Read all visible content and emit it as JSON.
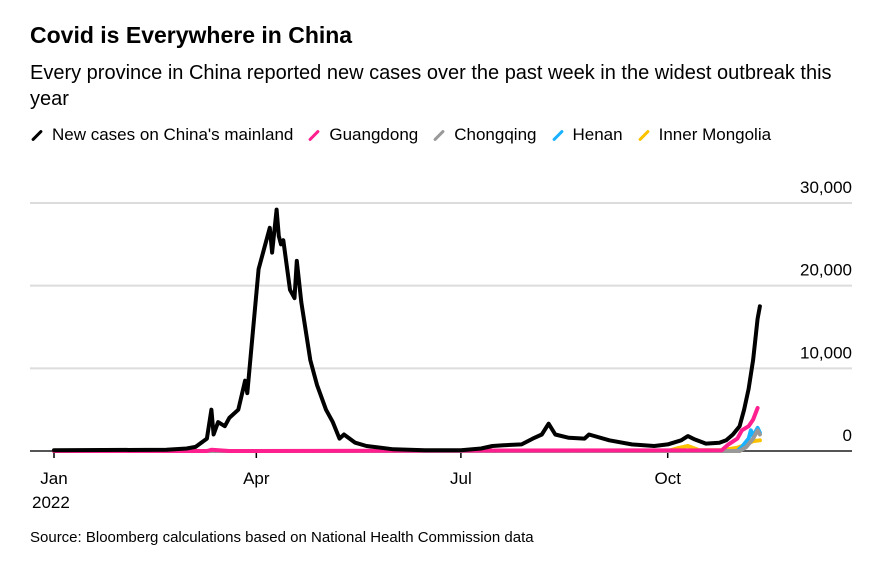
{
  "chart_data": {
    "type": "line",
    "title": "Covid is Everywhere in China",
    "subtitle": "Every province in China reported new cases over the past week in the widest outbreak this year",
    "source": "Source: Bloomberg calculations based on National Health Commission data",
    "ylim": [
      0,
      30000
    ],
    "yticks": [
      {
        "v": 0,
        "label": "0"
      },
      {
        "v": 10000,
        "label": "10,000"
      },
      {
        "v": 20000,
        "label": "20,000"
      },
      {
        "v": 30000,
        "label": "30,000"
      }
    ],
    "xticks": [
      {
        "d": "2022-01-01",
        "label": "Jan",
        "sub": "2022"
      },
      {
        "d": "2022-04-01",
        "label": "Apr"
      },
      {
        "d": "2022-07-01",
        "label": "Jul"
      },
      {
        "d": "2022-10-01",
        "label": "Oct"
      }
    ],
    "grid": true,
    "legend_position": "top-left",
    "series": [
      {
        "name": "New cases on China's mainland",
        "color": "#000000",
        "points": [
          [
            "2022-01-01",
            100
          ],
          [
            "2022-02-20",
            150
          ],
          [
            "2022-03-01",
            300
          ],
          [
            "2022-03-05",
            500
          ],
          [
            "2022-03-10",
            1500
          ],
          [
            "2022-03-12",
            5000
          ],
          [
            "2022-03-13",
            2000
          ],
          [
            "2022-03-15",
            3500
          ],
          [
            "2022-03-18",
            3000
          ],
          [
            "2022-03-20",
            4000
          ],
          [
            "2022-03-24",
            5000
          ],
          [
            "2022-03-27",
            8500
          ],
          [
            "2022-03-28",
            7000
          ],
          [
            "2022-03-30",
            13000
          ],
          [
            "2022-04-02",
            22000
          ],
          [
            "2022-04-05",
            25000
          ],
          [
            "2022-04-07",
            27000
          ],
          [
            "2022-04-08",
            24000
          ],
          [
            "2022-04-10",
            29200
          ],
          [
            "2022-04-11",
            26000
          ],
          [
            "2022-04-12",
            25000
          ],
          [
            "2022-04-13",
            25500
          ],
          [
            "2022-04-16",
            19500
          ],
          [
            "2022-04-18",
            18500
          ],
          [
            "2022-04-19",
            23000
          ],
          [
            "2022-04-21",
            18000
          ],
          [
            "2022-04-25",
            11000
          ],
          [
            "2022-04-28",
            8000
          ],
          [
            "2022-05-02",
            5000
          ],
          [
            "2022-05-05",
            3500
          ],
          [
            "2022-05-08",
            1500
          ],
          [
            "2022-05-10",
            2000
          ],
          [
            "2022-05-15",
            1000
          ],
          [
            "2022-05-20",
            600
          ],
          [
            "2022-06-01",
            200
          ],
          [
            "2022-06-15",
            100
          ],
          [
            "2022-07-01",
            100
          ],
          [
            "2022-07-10",
            300
          ],
          [
            "2022-07-15",
            600
          ],
          [
            "2022-07-20",
            700
          ],
          [
            "2022-07-28",
            800
          ],
          [
            "2022-08-02",
            1500
          ],
          [
            "2022-08-06",
            2000
          ],
          [
            "2022-08-09",
            3300
          ],
          [
            "2022-08-12",
            2000
          ],
          [
            "2022-08-18",
            1600
          ],
          [
            "2022-08-25",
            1500
          ],
          [
            "2022-08-27",
            2000
          ],
          [
            "2022-09-05",
            1300
          ],
          [
            "2022-09-15",
            800
          ],
          [
            "2022-09-25",
            600
          ],
          [
            "2022-10-01",
            800
          ],
          [
            "2022-10-07",
            1300
          ],
          [
            "2022-10-10",
            1800
          ],
          [
            "2022-10-13",
            1400
          ],
          [
            "2022-10-18",
            900
          ],
          [
            "2022-10-24",
            1000
          ],
          [
            "2022-10-27",
            1300
          ],
          [
            "2022-10-30",
            2000
          ],
          [
            "2022-11-02",
            3000
          ],
          [
            "2022-11-04",
            5000
          ],
          [
            "2022-11-06",
            7500
          ],
          [
            "2022-11-08",
            11000
          ],
          [
            "2022-11-10",
            16000
          ],
          [
            "2022-11-11",
            17500
          ]
        ]
      },
      {
        "name": "Guangdong",
        "color": "#ff1f8e",
        "points": [
          [
            "2022-01-01",
            0
          ],
          [
            "2022-03-10",
            0
          ],
          [
            "2022-03-12",
            150
          ],
          [
            "2022-03-20",
            0
          ],
          [
            "2022-10-25",
            100
          ],
          [
            "2022-10-28",
            800
          ],
          [
            "2022-11-01",
            1500
          ],
          [
            "2022-11-03",
            2500
          ],
          [
            "2022-11-06",
            3000
          ],
          [
            "2022-11-08",
            3800
          ],
          [
            "2022-11-10",
            5200
          ]
        ]
      },
      {
        "name": "Chongqing",
        "color": "#999999",
        "points": [
          [
            "2022-01-01",
            0
          ],
          [
            "2022-11-02",
            0
          ],
          [
            "2022-11-05",
            500
          ],
          [
            "2022-11-08",
            1500
          ],
          [
            "2022-11-10",
            2500
          ],
          [
            "2022-11-11",
            2000
          ]
        ]
      },
      {
        "name": "Henan",
        "color": "#1ab2ff",
        "points": [
          [
            "2022-01-01",
            0
          ],
          [
            "2022-11-01",
            0
          ],
          [
            "2022-11-03",
            500
          ],
          [
            "2022-11-06",
            1500
          ],
          [
            "2022-11-07",
            2500
          ],
          [
            "2022-11-08",
            1800
          ],
          [
            "2022-11-10",
            2800
          ],
          [
            "2022-11-11",
            2200
          ]
        ]
      },
      {
        "name": "Inner Mongolia",
        "color": "#fcc200",
        "points": [
          [
            "2022-01-01",
            0
          ],
          [
            "2022-10-01",
            0
          ],
          [
            "2022-10-05",
            300
          ],
          [
            "2022-10-10",
            600
          ],
          [
            "2022-10-15",
            100
          ],
          [
            "2022-10-25",
            100
          ],
          [
            "2022-11-01",
            400
          ],
          [
            "2022-11-05",
            800
          ],
          [
            "2022-11-08",
            1200
          ],
          [
            "2022-11-11",
            1300
          ]
        ]
      }
    ]
  }
}
